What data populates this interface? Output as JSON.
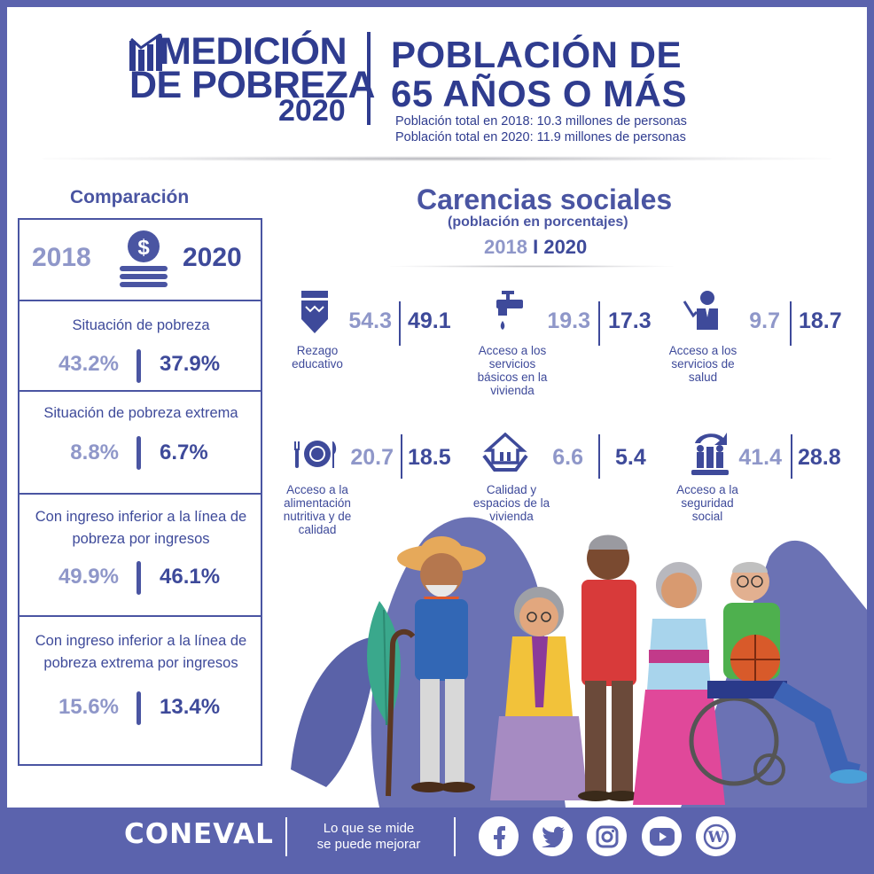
{
  "header": {
    "brand_line1": "MEDICIÓN",
    "brand_line2": "DE POBREZA",
    "brand_year": "2020",
    "title_line1": "POBLACIÓN DE",
    "title_line2": "65 AÑOS O MÁS",
    "population_2018": "Población total en 2018: 10.3 millones de personas",
    "population_2020": "Población total en 2020: 11.9 millones de personas"
  },
  "comparison": {
    "title": "Comparación",
    "year_a": "2018",
    "year_b": "2020",
    "rows": [
      {
        "label": "Situación de pobreza",
        "a": "43.2%",
        "b": "37.9%"
      },
      {
        "label": "Situación de pobreza extrema",
        "a": "8.8%",
        "b": "6.7%"
      },
      {
        "label": "Con ingreso  inferior a la línea de pobreza  por ingresos",
        "a": "49.9%",
        "b": "46.1%"
      },
      {
        "label": "Con ingreso inferior a la línea de pobreza extrema por ingresos",
        "a": "15.6%",
        "b": "13.4%"
      }
    ]
  },
  "carencias": {
    "title": "Carencias sociales",
    "subtitle": "(población en porcentajes)",
    "year_a": "2018",
    "separator": "I",
    "year_b": "2020",
    "items": [
      {
        "label": "Rezago educativo",
        "a": "54.3",
        "b": "49.1",
        "icon": "pencil-icon"
      },
      {
        "label": "Acceso a los servicios básicos en la vivienda",
        "a": "19.3",
        "b": "17.3",
        "icon": "water-tap-icon"
      },
      {
        "label": "Acceso a los servicios de salud",
        "a": "9.7",
        "b": "18.7",
        "icon": "doctor-icon"
      },
      {
        "label": "Acceso a la alimentación nutritiva y de calidad",
        "a": "20.7",
        "b": "18.5",
        "icon": "plate-cutlery-icon"
      },
      {
        "label": "Calidad y espacios de la vivienda",
        "a": "6.6",
        "b": "5.4",
        "icon": "house-hands-icon"
      },
      {
        "label": "Acceso a la seguridad social",
        "a": "41.4",
        "b": "28.8",
        "icon": "social-security-icon"
      }
    ]
  },
  "footer": {
    "logo": "CONEVAL",
    "slogan_line1": "Lo que se mide",
    "slogan_line2": "se puede mejorar",
    "social": [
      "facebook-icon",
      "twitter-icon",
      "instagram-icon",
      "youtube-icon",
      "wordpress-icon"
    ]
  },
  "colors": {
    "primary": "#2f3c8f",
    "accent": "#4a55a2",
    "light": "#8f97c9",
    "footer_bg": "#5b63ad"
  }
}
